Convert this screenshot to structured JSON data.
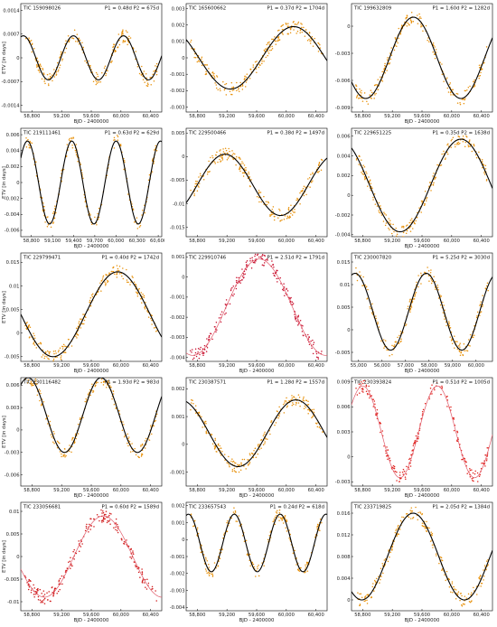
{
  "chart_data": [
    {
      "type": "scatter",
      "title": "TIC 159098026",
      "annotation": "P1 = 0.48d P2 = 675d",
      "xlabel": "BJD - 2400000",
      "ylabel": "ETV [in days]",
      "xticks": [
        58800,
        59200,
        59600,
        60000,
        60400
      ],
      "yticks": [
        0.0014,
        0.0007,
        0,
        -0.0007,
        -0.0014
      ],
      "xlim": [
        58650,
        60550
      ],
      "ylim": [
        -0.0016,
        0.0016
      ],
      "point_color": "#e8920d",
      "curve": "black",
      "fit": {
        "amp": 0.00065,
        "period": 675,
        "phase": 0.2,
        "offset": 0
      }
    },
    {
      "type": "scatter",
      "title": "TIC 165600662",
      "annotation": "P1 = 0.37d P2 = 1704d",
      "xlabel": "",
      "ylabel": "",
      "xticks": [
        58800,
        59200,
        59600,
        60000,
        60400
      ],
      "yticks": [
        0.003,
        0.002,
        0.001,
        0,
        -0.001,
        -0.002,
        -0.003
      ],
      "xlim": [
        58650,
        60550
      ],
      "ylim": [
        -0.0033,
        0.0033
      ],
      "point_color": "#e8920d",
      "curve": "black",
      "fit": {
        "amp": 0.0019,
        "period": 1704,
        "phase": 0.4,
        "offset": 0
      }
    },
    {
      "type": "scatter",
      "title": "TIC 199632809",
      "annotation": "P1 = 1.60d P2 = 1282d",
      "xlabel": "BJD - 2400000",
      "ylabel": "",
      "xticks": [
        58800,
        59200,
        59600,
        60000,
        60400
      ],
      "yticks": [
        0,
        -0.003,
        -0.006,
        -0.009
      ],
      "xlim": [
        58650,
        60550
      ],
      "ylim": [
        -0.0095,
        0.0025
      ],
      "point_color": "#e8920d",
      "curve": "black",
      "fit": {
        "amp": 0.0045,
        "period": 1282,
        "phase": 0.6,
        "offset": -0.0035
      }
    },
    {
      "type": "scatter",
      "title": "TIC 219111461",
      "annotation": "P1 = 0.63d P2 = 629d",
      "xlabel": "BJD - 2400000",
      "ylabel": "ETV [in days]",
      "xticks": [
        58800,
        59100,
        59400,
        59700,
        60000,
        60300,
        60600
      ],
      "yticks": [
        0.006,
        0.004,
        0.002,
        0,
        -0.002,
        -0.004,
        -0.006
      ],
      "xlim": [
        58650,
        60650
      ],
      "ylim": [
        -0.0068,
        0.0068
      ],
      "point_color": "#e8920d",
      "curve": "black",
      "fit": {
        "amp": 0.0052,
        "period": 629,
        "phase": 0.1,
        "offset": 0
      }
    },
    {
      "type": "scatter",
      "title": "TIC 229500466",
      "annotation": "P1 = 0.38d P2 = 1497d",
      "xlabel": "",
      "ylabel": "",
      "xticks": [
        58800,
        59200,
        59600,
        60000,
        60400
      ],
      "yticks": [
        0.005,
        0,
        -0.005,
        -0.01,
        -0.015
      ],
      "xlim": [
        58650,
        60550
      ],
      "ylim": [
        -0.017,
        0.006
      ],
      "point_color": "#e8920d",
      "curve": "black",
      "fit": {
        "amp": 0.0065,
        "period": 1497,
        "phase": 0.9,
        "offset": -0.006
      }
    },
    {
      "type": "scatter",
      "title": "TIC 229651225",
      "annotation": "P1 = 0.35d P2 = 1638d",
      "xlabel": "BJD - 2400000",
      "ylabel": "",
      "xticks": [
        58800,
        59200,
        59600,
        60000,
        60400
      ],
      "yticks": [
        0.006,
        0.004,
        0.002,
        0,
        -0.002,
        -0.004
      ],
      "xlim": [
        58650,
        60550
      ],
      "ylim": [
        -0.0042,
        0.0068
      ],
      "point_color": "#e8920d",
      "curve": "black",
      "fit": {
        "amp": 0.0047,
        "period": 1638,
        "phase": 0.35,
        "offset": 0.001
      }
    },
    {
      "type": "scatter",
      "title": "TIC 229799471",
      "annotation": "P1 = 0.40d P2 = 1742d",
      "xlabel": "BJD - 2400000",
      "ylabel": "ETV [in days]",
      "xticks": [
        58800,
        59200,
        59600,
        60000,
        60400
      ],
      "yticks": [
        0.015,
        0.01,
        0.005,
        0,
        -0.005
      ],
      "xlim": [
        58650,
        60550
      ],
      "ylim": [
        -0.006,
        0.017
      ],
      "point_color": "#e8920d",
      "curve": "black",
      "fit": {
        "amp": 0.009,
        "period": 1742,
        "phase": 0.5,
        "offset": 0.004
      }
    },
    {
      "type": "scatter",
      "title": "TIC 229910746",
      "annotation": "P1 = 2.51d P2 = 1791d",
      "xlabel": "BJD - 2400000",
      "ylabel": "",
      "xticks": [
        58800,
        59200,
        59600,
        60000,
        60400
      ],
      "yticks": [
        0.001,
        0,
        -0.001,
        -0.002,
        -0.003,
        -0.004
      ],
      "xlim": [
        58650,
        60550
      ],
      "ylim": [
        -0.0042,
        0.0012
      ],
      "point_color": "#c8102e",
      "curve": "#e05a6a",
      "fit": {
        "amp": 0.0024,
        "period": 1791,
        "phase": 0.7,
        "offset": -0.0015
      }
    },
    {
      "type": "scatter",
      "title": "TIC 230007820",
      "annotation": "P1 = 5.25d P2 = 3030d",
      "xlabel": "BJD - 2400000",
      "ylabel": "",
      "xticks": [
        55000,
        56000,
        57000,
        58000,
        59000,
        60000
      ],
      "yticks": [
        0.015,
        0.01,
        0.005,
        0,
        -0.005
      ],
      "xlim": [
        54700,
        60700
      ],
      "ylim": [
        -0.007,
        0.017
      ],
      "point_color": "#e8920d",
      "curve": "black",
      "fit": {
        "amp": 0.0085,
        "period": 3030,
        "phase": 0.2,
        "offset": 0.004
      }
    },
    {
      "type": "scatter",
      "title": "TIC 230116482",
      "annotation": "P1 = 1.93d P2 = 983d",
      "xlabel": "BJD - 2400000",
      "ylabel": "ETV [in days]",
      "xticks": [
        58800,
        59200,
        59600,
        60000,
        60400
      ],
      "yticks": [
        0.006,
        0.003,
        0,
        -0.003,
        -0.006
      ],
      "xlim": [
        58650,
        60550
      ],
      "ylim": [
        -0.0075,
        0.007
      ],
      "point_color": "#e8920d",
      "curve": "black",
      "fit": {
        "amp": 0.005,
        "period": 983,
        "phase": 0.15,
        "offset": 0.002
      }
    },
    {
      "type": "scatter",
      "title": "TIC 230387571",
      "annotation": "P1 = 1.28d P2 = 1557d",
      "xlabel": "BJD - 2400000",
      "ylabel": "",
      "xticks": [
        58800,
        59200,
        59600,
        60000,
        60400
      ],
      "yticks": [
        0.002,
        0.001,
        0,
        -0.001
      ],
      "xlim": [
        58650,
        60550
      ],
      "ylim": [
        -0.0015,
        0.0024
      ],
      "point_color": "#e8920d",
      "curve": "black",
      "fit": {
        "amp": 0.0012,
        "period": 1557,
        "phase": 0.3,
        "offset": 0.0004
      }
    },
    {
      "type": "scatter",
      "title": "TIC 230393824",
      "annotation": "P1 = 0.51d P2 = 1005d",
      "xlabel": "BJD - 2400000",
      "ylabel": "",
      "xticks": [
        58800,
        59200,
        59600,
        60000,
        60400
      ],
      "yticks": [
        0.009,
        0.006,
        0.003,
        0,
        -0.003
      ],
      "xlim": [
        58650,
        60550
      ],
      "ylim": [
        -0.0035,
        0.0095
      ],
      "point_color": "#e0201a",
      "curve": "#e05a6a",
      "fit": {
        "amp": 0.0055,
        "period": 1005,
        "phase": 0.1,
        "offset": 0.003
      }
    },
    {
      "type": "scatter",
      "title": "TIC 233056681",
      "annotation": "P1 = 0.60d P2 = 1589d",
      "xlabel": "BJD - 2400000",
      "ylabel": "ETV [in days]",
      "xticks": [
        58800,
        59200,
        59600,
        60000,
        60400
      ],
      "yticks": [
        0.01,
        0.005,
        0,
        -0.005,
        -0.01
      ],
      "xlim": [
        58650,
        60550
      ],
      "ylim": [
        -0.012,
        0.012
      ],
      "point_color": "#d01818",
      "curve": "#e05a6a",
      "fit": {
        "amp": 0.009,
        "period": 1589,
        "phase": 0.55,
        "offset": 0
      }
    },
    {
      "type": "scatter",
      "title": "TIC 233657543",
      "annotation": "P1 = 0.24d P2 = 618d",
      "xlabel": "BJD - 2400000",
      "ylabel": "",
      "xticks": [
        58800,
        59200,
        59600,
        60000,
        60400
      ],
      "yticks": [
        0.002,
        0.001,
        0,
        -0.001,
        -0.002,
        -0.003,
        -0.004
      ],
      "xlim": [
        58650,
        60550
      ],
      "ylim": [
        -0.0042,
        0.0022
      ],
      "point_color": "#e8920d",
      "curve": "black",
      "fit": {
        "amp": 0.0017,
        "period": 618,
        "phase": 0.2,
        "offset": -0.0002
      }
    },
    {
      "type": "scatter",
      "title": "TIC 233719825",
      "annotation": "P1 = 2.05d P2 = 1384d",
      "xlabel": "BJD - 2400000",
      "ylabel": "",
      "xticks": [
        58800,
        59200,
        59600,
        60000,
        60400
      ],
      "yticks": [
        0.016,
        0.012,
        0.008,
        0.004,
        0
      ],
      "xlim": [
        58650,
        60550
      ],
      "ylim": [
        -0.002,
        0.018
      ],
      "point_color": "#e8920d",
      "curve": "black",
      "fit": {
        "amp": 0.008,
        "period": 1384,
        "phase": 0.65,
        "offset": 0.008
      }
    }
  ]
}
